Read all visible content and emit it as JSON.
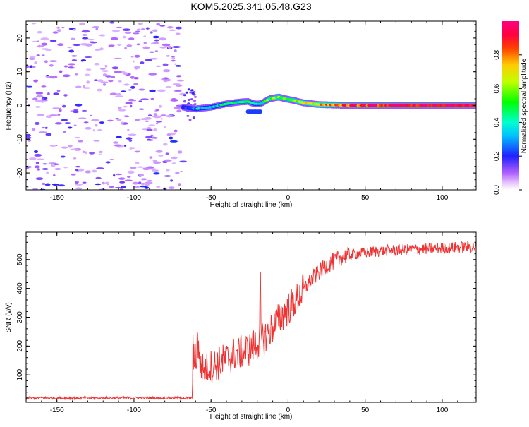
{
  "title": "KOM5.2025.341.05.48.G23",
  "chart_data": [
    {
      "type": "heatmap",
      "name": "spectrogram",
      "xlabel": "Height of straight line (km)",
      "ylabel": "Frequency (Hz)",
      "xlim": [
        -170,
        122
      ],
      "ylim": [
        -25,
        25
      ],
      "xticks": [
        -150,
        -100,
        -50,
        0,
        50,
        100
      ],
      "yticks": [
        -20,
        -10,
        0,
        10,
        20
      ],
      "noise_region_x": [
        -170,
        -68
      ],
      "signal_region_x": [
        -68,
        122
      ],
      "signal_ridge": {
        "x": [
          -68,
          -60,
          -50,
          -40,
          -32,
          -26,
          -22,
          -18,
          -12,
          -6,
          -2,
          4,
          10,
          20,
          40,
          60,
          80,
          100,
          122
        ],
        "freq": [
          -0.5,
          -1.0,
          -0.5,
          0.5,
          1.0,
          1.2,
          0.5,
          0.5,
          2.0,
          2.5,
          2.0,
          1.5,
          0.8,
          0.3,
          0.0,
          0.0,
          0.0,
          0.0,
          0.0
        ],
        "amplitude": [
          0.18,
          0.3,
          0.35,
          0.4,
          0.45,
          0.5,
          0.35,
          0.4,
          0.55,
          0.6,
          0.55,
          0.6,
          0.7,
          0.75,
          0.85,
          0.9,
          0.95,
          0.95,
          0.9
        ]
      },
      "colorbar": {
        "label": "Normalized spectral amplitude",
        "ticks": [
          "0.0",
          "0.2",
          "0.4",
          "0.6",
          "0.8"
        ],
        "range": [
          0,
          1
        ]
      }
    },
    {
      "type": "line",
      "name": "snr",
      "xlabel": "Height of straight line (km)",
      "ylabel": "SNR (v/v)",
      "xlim": [
        -170,
        122
      ],
      "ylim": [
        5,
        595
      ],
      "xticks": [
        -150,
        -100,
        -50,
        0,
        50,
        100
      ],
      "yticks": [
        100,
        200,
        300,
        400,
        500
      ],
      "series": [
        {
          "name": "SNR",
          "color": "#ee3333",
          "trend_x": [
            -170,
            -62,
            -61,
            -55,
            -45,
            -35,
            -25,
            -15,
            -5,
            5,
            15,
            25,
            35,
            45,
            60,
            80,
            100,
            122
          ],
          "trend_y": [
            20,
            20,
            170,
            120,
            140,
            170,
            190,
            230,
            300,
            360,
            430,
            480,
            510,
            520,
            530,
            535,
            540,
            545
          ],
          "spike": {
            "x": -18,
            "y": 455
          }
        }
      ]
    }
  ]
}
